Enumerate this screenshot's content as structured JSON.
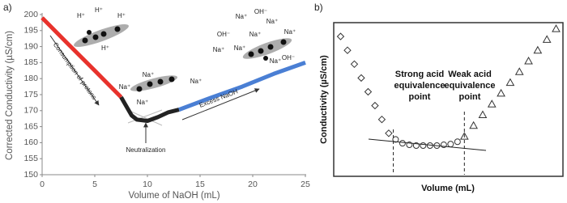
{
  "chart_data": [
    {
      "type": "line",
      "panel_label": "a)",
      "x_label": "Volume of NaOH (mL)",
      "y_label": "Corrected Conductivity (µS/cm)",
      "xlim": [
        0,
        25
      ],
      "ylim": [
        150,
        200
      ],
      "xticks": [
        0,
        5,
        10,
        15,
        20,
        25
      ],
      "yticks": [
        150,
        155,
        160,
        165,
        170,
        175,
        180,
        185,
        190,
        195,
        200
      ],
      "series": [
        {
          "color": "#e8322c",
          "x": [
            0,
            2.5,
            5,
            7.5
          ],
          "values": [
            199,
            190.7,
            182.5,
            174.2
          ]
        },
        {
          "color": "#222222",
          "x": [
            7.5,
            8.5,
            9,
            10,
            11,
            12,
            13
          ],
          "values": [
            174.2,
            168.5,
            167.2,
            166.8,
            168,
            169.5,
            170.3
          ]
        },
        {
          "color": "#4a7fd4",
          "x": [
            13,
            16,
            19,
            22,
            25
          ],
          "values": [
            170.3,
            174,
            177.5,
            181.5,
            185
          ]
        }
      ],
      "annotations": [
        "Consumption of protons",
        "Neutralization",
        "Excess NaOH",
        "H⁺",
        "H⁺",
        "H⁺",
        "H⁺",
        "Na⁺",
        "Na⁺",
        "Na⁺",
        "Na⁺",
        "OH⁻",
        "Na⁺",
        "Na⁺",
        "OH⁻",
        "Na⁺",
        "Na⁺",
        "Na⁺",
        "OH⁻",
        "Na⁺",
        "Na⁺"
      ]
    },
    {
      "type": "scatter",
      "panel_label": "b)",
      "x_label": "Volume (mL)",
      "y_label": "Conductivity (µS/cm)",
      "xlim": [
        0,
        100
      ],
      "ylim": [
        0,
        100
      ],
      "annotations": [
        [
          "Strong acid",
          "equivalence",
          "point"
        ],
        [
          "Weak acid",
          "equivalence",
          "point"
        ]
      ],
      "series": [
        {
          "marker": "diamond",
          "x": [
            3,
            6,
            9,
            12,
            15,
            18,
            21,
            24
          ],
          "values": [
            91,
            82,
            73,
            64,
            55,
            46,
            37,
            28
          ]
        },
        {
          "marker": "circle",
          "x": [
            27,
            30,
            33,
            36,
            39,
            42,
            45,
            48,
            51,
            54
          ],
          "values": [
            24,
            21.5,
            20.5,
            20,
            20,
            20,
            20,
            20.5,
            21,
            22.5
          ]
        },
        {
          "marker": "triangle",
          "x": [
            57,
            61,
            65,
            69,
            73,
            77,
            81,
            85,
            89,
            93,
            97
          ],
          "values": [
            26,
            33,
            40,
            47,
            54,
            61,
            68,
            75,
            82,
            89,
            96
          ]
        }
      ]
    }
  ]
}
